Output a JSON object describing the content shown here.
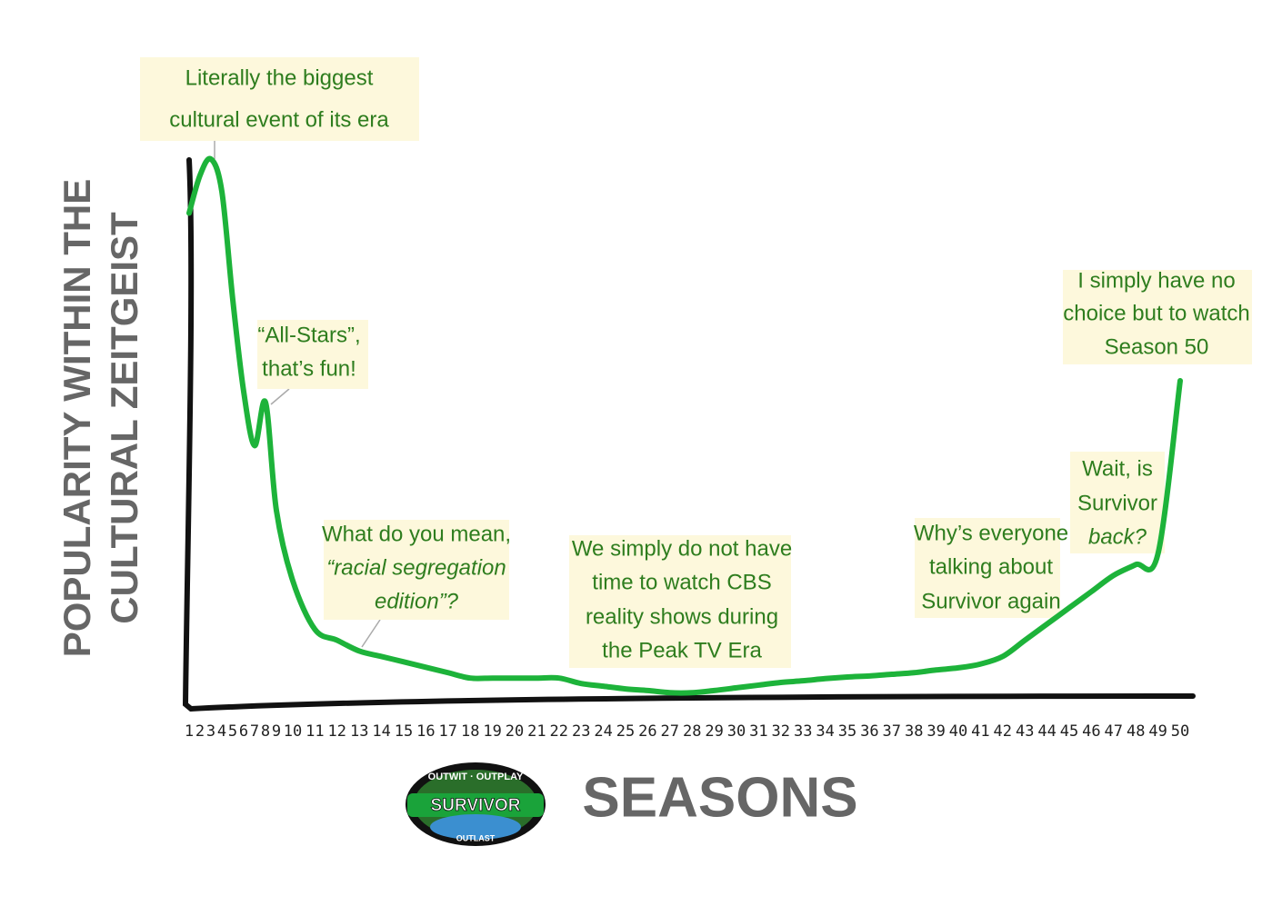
{
  "chart_data": {
    "type": "line",
    "xlabel": "SEASONS",
    "ylabel": [
      "POPULARITY WITHIN THE",
      "CULTURAL ZEITGEIST"
    ],
    "categories": [
      "1",
      "2",
      "3",
      "4",
      "5",
      "6",
      "7",
      "8",
      "9",
      "10",
      "11",
      "12",
      "13",
      "14",
      "15",
      "16",
      "17",
      "18",
      "19",
      "20",
      "21",
      "22",
      "23",
      "24",
      "25",
      "26",
      "27",
      "28",
      "29",
      "30",
      "31",
      "32",
      "33",
      "34",
      "35",
      "36",
      "37",
      "38",
      "39",
      "40",
      "41",
      "42",
      "43",
      "44",
      "45",
      "46",
      "47",
      "48",
      "49",
      "50"
    ],
    "values": [
      90,
      97,
      100,
      94,
      74,
      57,
      47,
      55,
      35,
      22,
      13,
      11,
      9,
      8,
      7,
      6,
      5,
      4,
      4,
      4,
      4,
      4,
      3,
      2.5,
      2,
      1.7,
      1.3,
      1.3,
      1.7,
      2.2,
      2.7,
      3.2,
      3.5,
      3.9,
      4.2,
      4.4,
      4.7,
      5,
      5.5,
      5.9,
      6.6,
      8,
      11,
      14,
      17,
      20,
      23,
      25,
      27,
      59
    ],
    "color": "#1db33a",
    "ylim": [
      0,
      100
    ],
    "annotations": [
      {
        "lines": [
          "Literally the biggest",
          "cultural event of its era"
        ]
      },
      {
        "lines": [
          "“All-Stars”,",
          "that’s fun!"
        ]
      },
      {
        "lines": [
          "What do you mean,",
          "“racial segregation",
          "edition”?"
        ]
      },
      {
        "lines": [
          "We simply do not have",
          "time to watch CBS",
          "reality shows during",
          "the Peak TV Era"
        ]
      },
      {
        "lines": [
          "Why’s everyone",
          "talking about",
          "Survivor again"
        ]
      },
      {
        "lines": [
          "Wait, is",
          "Survivor",
          "back?"
        ]
      },
      {
        "lines": [
          "I simply have no",
          "choice but to watch",
          "Season 50"
        ]
      }
    ],
    "logo_text": [
      "OUTWIT · OUTPLAY",
      "SURVIVOR",
      "OUTLAST"
    ]
  }
}
